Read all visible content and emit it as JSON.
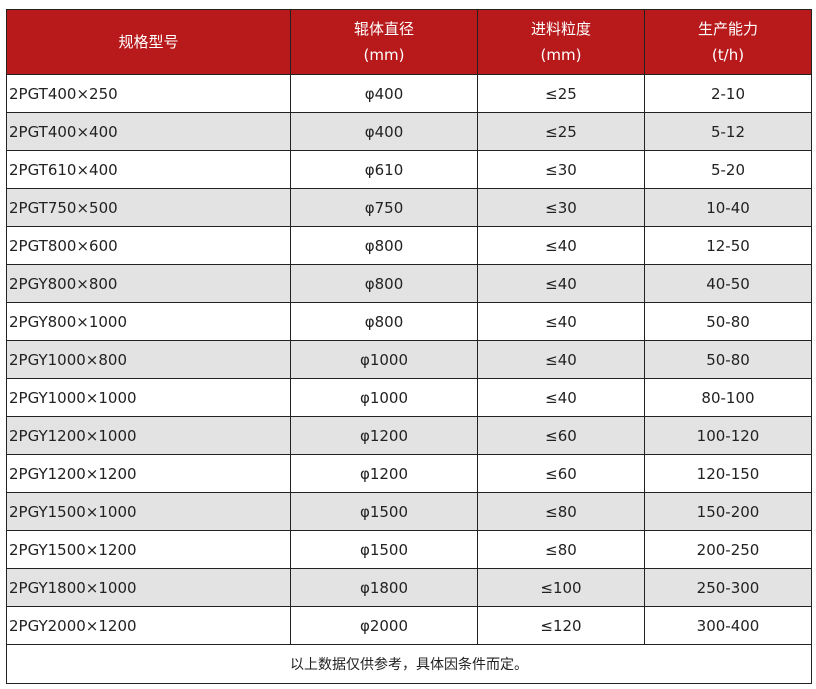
{
  "header": {
    "col1": "规格型号",
    "col2": "辊体直径",
    "col2_unit": "(mm)",
    "col3": "进料粒度",
    "col3_unit": "(mm)",
    "col4": "生产能力",
    "col4_unit": "(t/h)"
  },
  "colors": {
    "header_bg": "#b8191b",
    "alt_row": "#e3e3e3"
  },
  "rows": [
    [
      "2PGT400×250",
      "φ400",
      "≤25",
      "2-10"
    ],
    [
      "2PGT400×400",
      "φ400",
      "≤25",
      "5-12"
    ],
    [
      "2PGT610×400",
      "φ610",
      "≤30",
      "5-20"
    ],
    [
      "2PGT750×500",
      "φ750",
      "≤30",
      "10-40"
    ],
    [
      "2PGT800×600",
      "φ800",
      "≤40",
      "12-50"
    ],
    [
      "2PGY800×800",
      "φ800",
      "≤40",
      "40-50"
    ],
    [
      "2PGY800×1000",
      "φ800",
      "≤40",
      "50-80"
    ],
    [
      "2PGY1000×800",
      "φ1000",
      "≤40",
      "50-80"
    ],
    [
      "2PGY1000×1000",
      "φ1000",
      "≤40",
      "80-100"
    ],
    [
      "2PGY1200×1000",
      "φ1200",
      "≤60",
      "100-120"
    ],
    [
      "2PGY1200×1200",
      "φ1200",
      "≤60",
      "120-150"
    ],
    [
      "2PGY1500×1000",
      "φ1500",
      "≤80",
      "150-200"
    ],
    [
      "2PGY1500×1200",
      "φ1500",
      "≤80",
      "200-250"
    ],
    [
      "2PGY1800×1000",
      "φ1800",
      "≤100",
      "250-300"
    ],
    [
      "2PGY2000×1200",
      "φ2000",
      "≤120",
      "300-400"
    ]
  ],
  "footer": "以上数据仅供参考，具体因条件而定。"
}
